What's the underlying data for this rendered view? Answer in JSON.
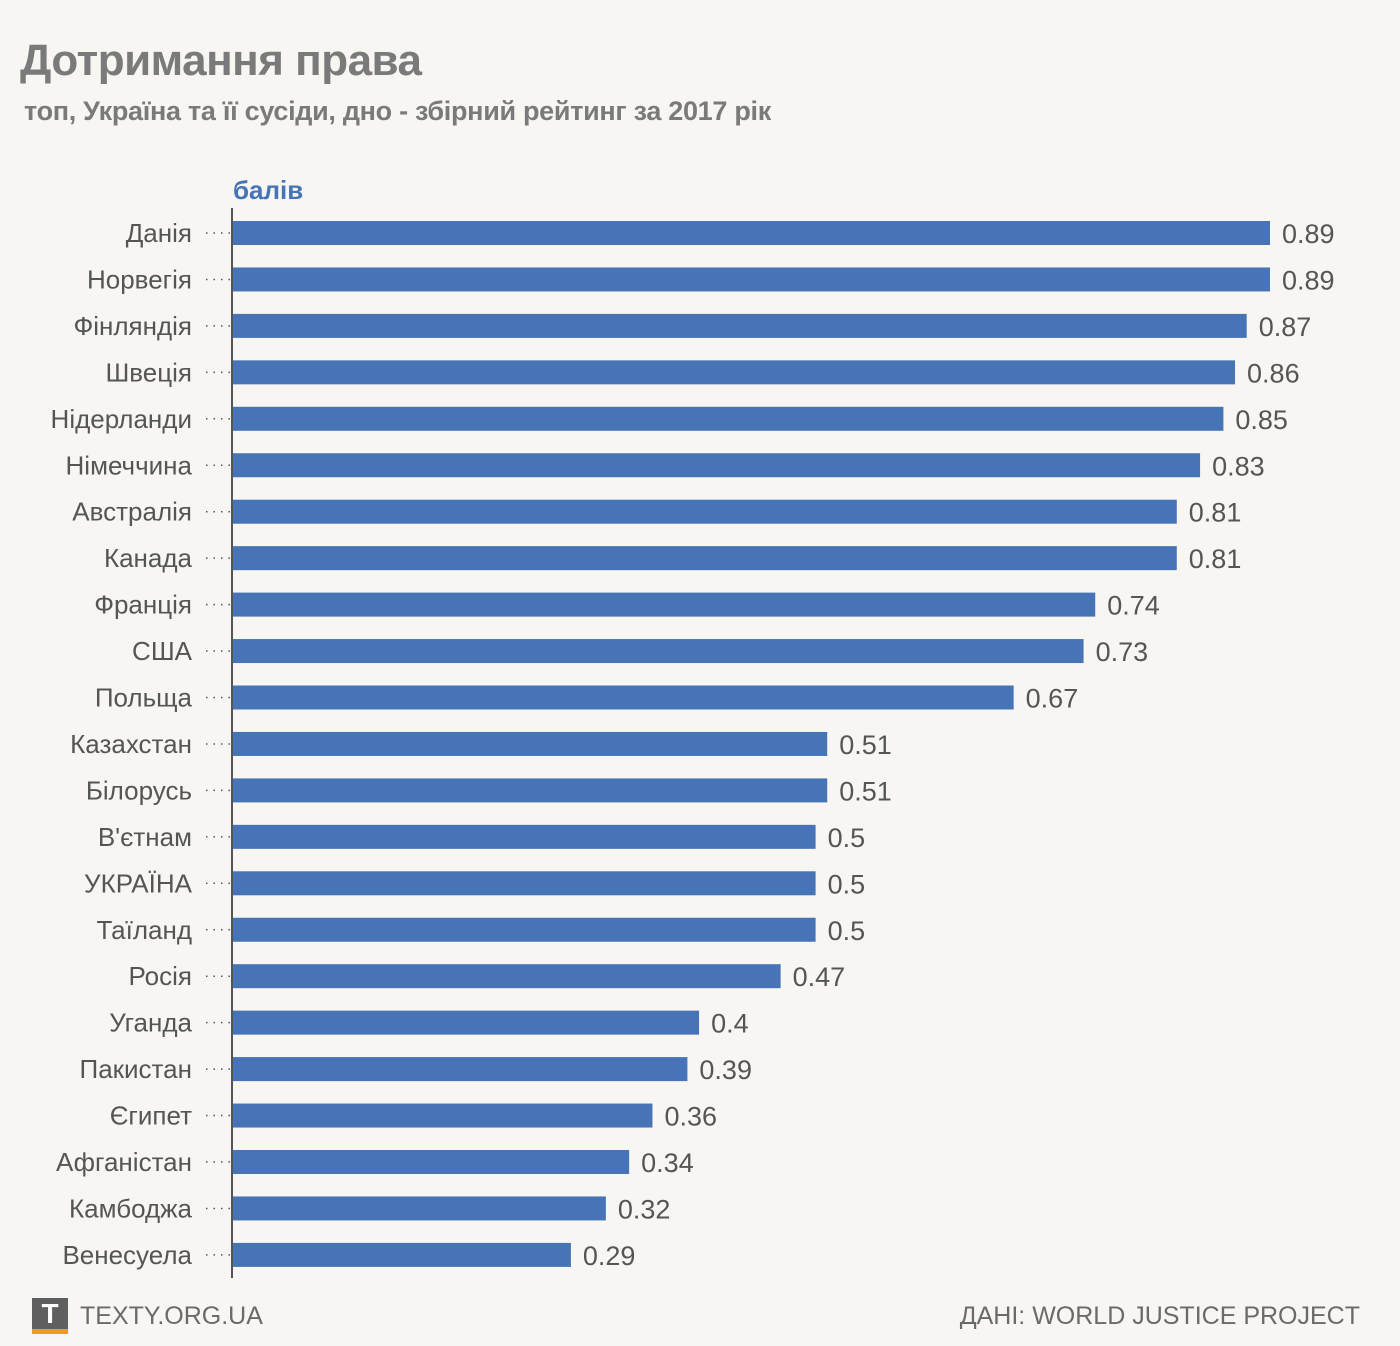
{
  "header": {
    "title": "Дотримання права",
    "subtitle": "топ, Україна та її сусіди, дно - збірний рейтинг за 2017 рік"
  },
  "chart_data": {
    "type": "bar",
    "orientation": "horizontal",
    "title": "Дотримання права",
    "subtitle": "топ, Україна та її сусіди, дно - збірний рейтинг за 2017 рік",
    "unit_label": "балів",
    "categories": [
      "Данія",
      "Норвегія",
      "Фінляндія",
      "Швеція",
      "Нідерланди",
      "Німеччина",
      "Австралія",
      "Канада",
      "Франція",
      "США",
      "Польща",
      "Казахстан",
      "Білорусь",
      "В'єтнам",
      "УКРАЇНА",
      "Таїланд",
      "Росія",
      "Уганда",
      "Пакистан",
      "Єгипет",
      "Афганістан",
      "Камбоджа",
      "Венесуела"
    ],
    "values": [
      0.89,
      0.89,
      0.87,
      0.86,
      0.85,
      0.83,
      0.81,
      0.81,
      0.74,
      0.73,
      0.67,
      0.51,
      0.51,
      0.5,
      0.5,
      0.5,
      0.47,
      0.4,
      0.39,
      0.36,
      0.34,
      0.32,
      0.29
    ],
    "xlim": [
      0,
      0.89
    ],
    "bar_color": "#4674b6",
    "grid": false
  },
  "footer": {
    "logo_letter": "T",
    "site": "TEXTY.ORG.UA",
    "source": "ДАНІ: WORLD JUSTICE PROJECT"
  }
}
